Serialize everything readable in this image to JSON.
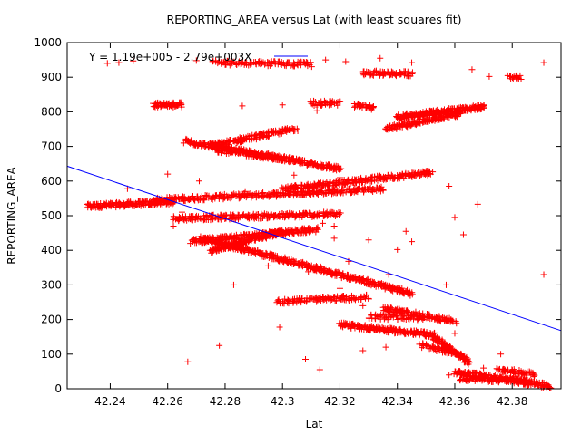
{
  "chart_data": {
    "type": "scatter",
    "title": "REPORTING_AREA versus Lat (with least squares fit)",
    "xlabel": "Lat",
    "ylabel": "REPORTING_AREA",
    "xlim": [
      42.225,
      42.397
    ],
    "ylim": [
      0,
      1000
    ],
    "x_ticks": [
      "42.24",
      "42.26",
      "42.28",
      "42.3",
      "42.32",
      "42.34",
      "42.36",
      "42.38"
    ],
    "x_tick_values": [
      42.24,
      42.26,
      42.28,
      42.3,
      42.32,
      42.34,
      42.36,
      42.38
    ],
    "y_ticks": [
      "0",
      "100",
      "200",
      "300",
      "400",
      "500",
      "600",
      "700",
      "800",
      "900",
      "1000"
    ],
    "y_tick_values": [
      0,
      100,
      200,
      300,
      400,
      500,
      600,
      700,
      800,
      900,
      1000
    ],
    "grid": false,
    "legend_position": "top-left",
    "legend_label": "Y = 1.19e+005 - 2.79e+003X",
    "marker": "+",
    "marker_color": "#ff0000",
    "fit_color": "#0000ff",
    "fit_line": {
      "intercept": 119000,
      "slope": -2790,
      "points": [
        [
          42.225,
          643
        ],
        [
          42.397,
          168
        ]
      ]
    },
    "series": [
      {
        "segments": [
          [
            42.232,
            527,
            42.262,
            540,
            180
          ],
          [
            42.255,
            545,
            42.335,
            577,
            320
          ],
          [
            42.3,
            577,
            42.352,
            625,
            240
          ],
          [
            42.262,
            492,
            42.32,
            505,
            240
          ],
          [
            42.266,
            715,
            42.32,
            635,
            300
          ],
          [
            42.275,
            702,
            42.305,
            752,
            140
          ],
          [
            42.277,
            690,
            42.3,
            665,
            90
          ],
          [
            42.268,
            425,
            42.312,
            460,
            220
          ],
          [
            42.275,
            398,
            42.3,
            455,
            160
          ],
          [
            42.272,
            435,
            42.345,
            275,
            420
          ],
          [
            42.298,
            252,
            42.33,
            265,
            110
          ],
          [
            42.32,
            185,
            42.353,
            155,
            180
          ],
          [
            42.335,
            232,
            42.36,
            195,
            120
          ],
          [
            42.33,
            208,
            42.35,
            205,
            60
          ],
          [
            42.353,
            148,
            42.365,
            75,
            110
          ],
          [
            42.348,
            128,
            42.36,
            102,
            50
          ],
          [
            42.36,
            48,
            42.393,
            8,
            200
          ],
          [
            42.362,
            30,
            42.385,
            22,
            80
          ],
          [
            42.375,
            55,
            42.388,
            42,
            50
          ],
          [
            42.34,
            785,
            42.37,
            815,
            220
          ],
          [
            42.336,
            752,
            42.362,
            795,
            140
          ],
          [
            42.325,
            820,
            42.332,
            812,
            35
          ],
          [
            42.255,
            820,
            42.265,
            820,
            60
          ],
          [
            42.276,
            942,
            42.31,
            937,
            110
          ],
          [
            42.328,
            912,
            42.345,
            910,
            70
          ],
          [
            42.379,
            902,
            42.383,
            901,
            20
          ],
          [
            42.31,
            825,
            42.32,
            825,
            40
          ]
        ],
        "points": [
          [
            42.239,
            940
          ],
          [
            42.243,
            942
          ],
          [
            42.248,
            947
          ],
          [
            42.27,
            948
          ],
          [
            42.315,
            950
          ],
          [
            42.322,
            945
          ],
          [
            42.334,
            955
          ],
          [
            42.345,
            942
          ],
          [
            42.372,
            902
          ],
          [
            42.366,
            922
          ],
          [
            42.391,
            942
          ],
          [
            42.286,
            817
          ],
          [
            42.3,
            820
          ],
          [
            42.312,
            803
          ],
          [
            42.246,
            578
          ],
          [
            42.287,
            570
          ],
          [
            42.304,
            617
          ],
          [
            42.32,
            610
          ],
          [
            42.329,
            607
          ],
          [
            42.358,
            585
          ],
          [
            42.363,
            445
          ],
          [
            42.36,
            495
          ],
          [
            42.368,
            533
          ],
          [
            42.343,
            455
          ],
          [
            42.345,
            425
          ],
          [
            42.34,
            402
          ],
          [
            42.33,
            430
          ],
          [
            42.318,
            435
          ],
          [
            42.314,
            478
          ],
          [
            42.312,
            498
          ],
          [
            42.306,
            495
          ],
          [
            42.318,
            470
          ],
          [
            42.323,
            368
          ],
          [
            42.337,
            330
          ],
          [
            42.357,
            300
          ],
          [
            42.283,
            300
          ],
          [
            42.278,
            125
          ],
          [
            42.267,
            78
          ],
          [
            42.299,
            178
          ],
          [
            42.308,
            85
          ],
          [
            42.313,
            55
          ],
          [
            42.328,
            110
          ],
          [
            42.336,
            120
          ],
          [
            42.391,
            330
          ],
          [
            42.36,
            160
          ],
          [
            42.376,
            100
          ],
          [
            42.37,
            60
          ],
          [
            42.358,
            40
          ],
          [
            42.26,
            620
          ],
          [
            42.265,
            510
          ],
          [
            42.262,
            470
          ],
          [
            42.316,
            260
          ],
          [
            42.32,
            290
          ],
          [
            42.328,
            240
          ],
          [
            42.304,
            362
          ],
          [
            42.309,
            338
          ],
          [
            42.295,
            355
          ],
          [
            42.271,
            600
          ]
        ]
      }
    ]
  }
}
